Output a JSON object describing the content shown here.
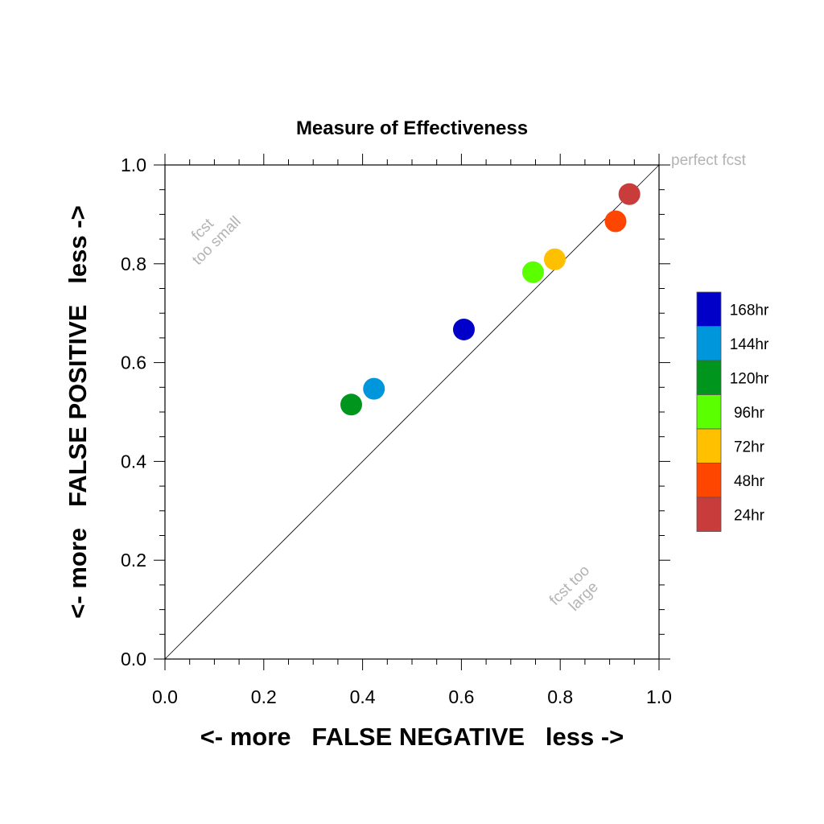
{
  "chart_data": {
    "type": "scatter",
    "title": "Measure of Effectiveness",
    "xlabel": "<- more   FALSE NEGATIVE   less ->",
    "ylabel": "<- more   FALSE POSITIVE   less ->",
    "xlim": [
      0.0,
      1.0
    ],
    "ylim": [
      0.0,
      1.0
    ],
    "xticks": [
      "0.0",
      "0.2",
      "0.4",
      "0.6",
      "0.8",
      "1.0"
    ],
    "yticks": [
      "0.0",
      "0.2",
      "0.4",
      "0.6",
      "0.8",
      "1.0"
    ],
    "grid": false,
    "diagonal_reference_line": true,
    "legend_position": "right",
    "series": [
      {
        "name": "168hr",
        "color": "#0000c8",
        "x": 0.605,
        "y": 0.667
      },
      {
        "name": "144hr",
        "color": "#0096dc",
        "x": 0.423,
        "y": 0.547
      },
      {
        "name": "120hr",
        "color": "#00961e",
        "x": 0.377,
        "y": 0.515
      },
      {
        "name": "96hr",
        "color": "#5aff00",
        "x": 0.745,
        "y": 0.783
      },
      {
        "name": "72hr",
        "color": "#ffc000",
        "x": 0.789,
        "y": 0.809
      },
      {
        "name": "48hr",
        "color": "#ff4600",
        "x": 0.912,
        "y": 0.886
      },
      {
        "name": "24hr",
        "color": "#c83c3c",
        "x": 0.94,
        "y": 0.941
      }
    ],
    "annotations": {
      "perfect": "perfect fcst",
      "upper_left": [
        "fcst",
        "too small"
      ],
      "lower_right": [
        "fcst too",
        "large"
      ]
    }
  }
}
